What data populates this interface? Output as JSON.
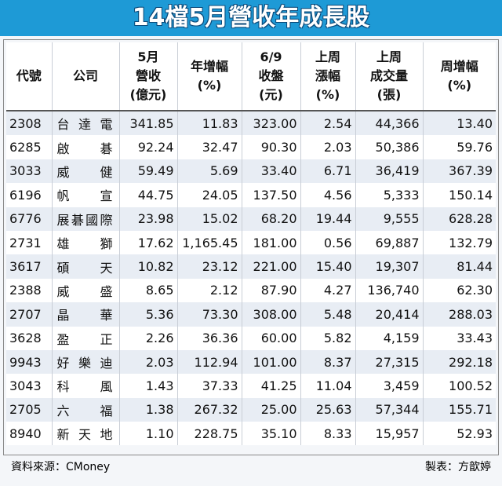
{
  "header": {
    "title": "14檔5月營收年成長股"
  },
  "table": {
    "columns": [
      [
        "代號"
      ],
      [
        "公司"
      ],
      [
        "5月",
        "營收",
        "(億元)"
      ],
      [
        "年增幅",
        "(%)"
      ],
      [
        "6/9",
        "收盤",
        "(元)"
      ],
      [
        "上周",
        "漲幅",
        "(%)"
      ],
      [
        "上周",
        "成交量",
        "(張)"
      ],
      [
        "周增幅",
        "(%)"
      ]
    ],
    "rows": [
      [
        "2308",
        "台達電",
        "341.85",
        "11.83",
        "323.00",
        "2.54",
        "44,366",
        "13.40"
      ],
      [
        "6285",
        "啟碁",
        "92.24",
        "32.47",
        "90.30",
        "2.03",
        "50,386",
        "59.76"
      ],
      [
        "3033",
        "威健",
        "59.49",
        "5.69",
        "33.40",
        "6.71",
        "36,419",
        "367.39"
      ],
      [
        "6196",
        "帆宣",
        "44.75",
        "24.05",
        "137.50",
        "4.56",
        "5,333",
        "150.14"
      ],
      [
        "6776",
        "展碁國際",
        "23.98",
        "15.02",
        "68.20",
        "19.44",
        "9,555",
        "628.28"
      ],
      [
        "2731",
        "雄獅",
        "17.62",
        "1,165.45",
        "181.00",
        "0.56",
        "69,887",
        "132.79"
      ],
      [
        "3617",
        "碩天",
        "10.82",
        "23.12",
        "221.00",
        "15.40",
        "19,307",
        "81.44"
      ],
      [
        "2388",
        "威盛",
        "8.65",
        "2.12",
        "87.90",
        "4.27",
        "136,740",
        "62.30"
      ],
      [
        "2707",
        "晶華",
        "5.36",
        "73.30",
        "308.00",
        "5.48",
        "20,414",
        "288.03"
      ],
      [
        "3628",
        "盈正",
        "2.26",
        "36.36",
        "60.00",
        "5.82",
        "4,159",
        "33.43"
      ],
      [
        "9943",
        "好樂迪",
        "2.03",
        "112.94",
        "101.00",
        "8.37",
        "27,315",
        "292.18"
      ],
      [
        "3043",
        "科風",
        "1.43",
        "37.33",
        "41.25",
        "11.04",
        "3,459",
        "100.52"
      ],
      [
        "2705",
        "六福",
        "1.38",
        "267.32",
        "25.00",
        "25.63",
        "57,344",
        "155.71"
      ],
      [
        "8940",
        "新天地",
        "1.10",
        "228.75",
        "35.10",
        "8.33",
        "15,957",
        "52.93"
      ]
    ]
  },
  "footer": {
    "source": "資料來源：CMoney",
    "author": "製表：方歆婷"
  }
}
